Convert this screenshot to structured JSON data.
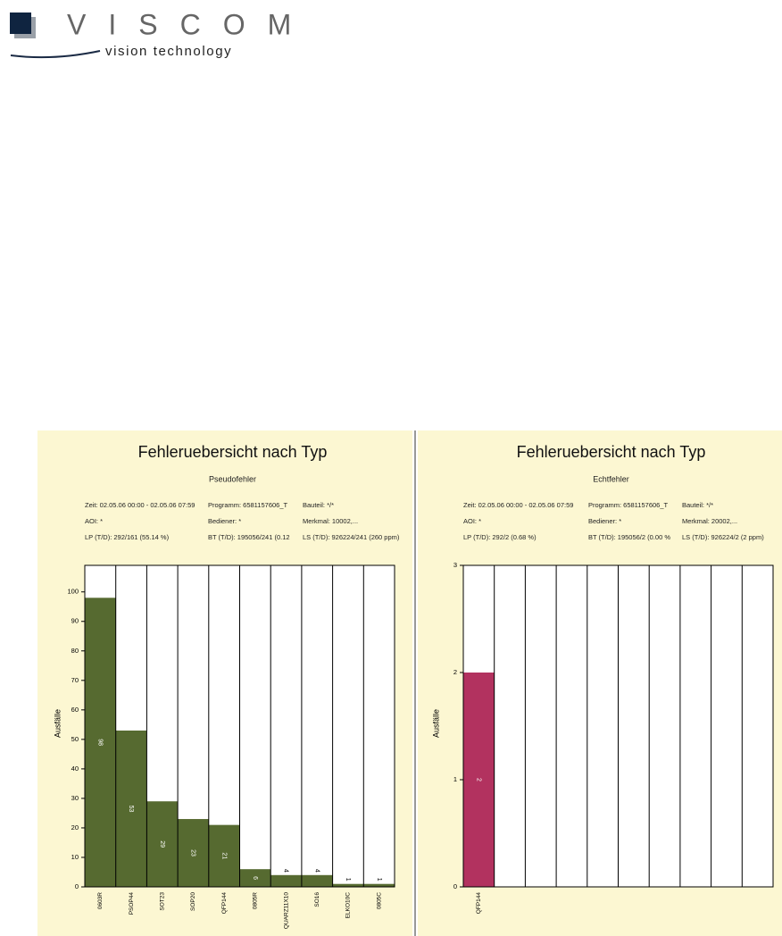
{
  "header": {
    "brand": "VISCOM",
    "tagline": "vision technology"
  },
  "chart_data": [
    {
      "type": "bar",
      "title": "Fehleruebersicht nach Typ",
      "subtitle": "Pseudofehler",
      "ylabel": "Ausfälle",
      "info": [
        [
          "Zeit: 02.05.06 00:00 - 02.05.06 07:59",
          "Programm: 6581157606_T",
          "Bauteil: */*"
        ],
        [
          "AOI: *",
          "Bediener: *",
          "Merkmal: 10002,..."
        ],
        [
          "LP (T/D): 292/161 (55.14 %)",
          "BT (T/D): 195056/241 (0.12",
          "LS (T/D): 926224/241 (260 ppm)"
        ]
      ],
      "categories": [
        "0603R",
        "PSOP44",
        "SOT23",
        "SOP20",
        "QFP144",
        "0805R",
        "QUARZ11X10",
        "SO16",
        "ELKO10C",
        "0805C"
      ],
      "values": [
        98,
        53,
        29,
        23,
        21,
        6,
        4,
        4,
        1,
        1
      ],
      "color": "#566a30",
      "ylim": [
        0,
        109
      ],
      "yticks": [
        0,
        10,
        20,
        30,
        40,
        50,
        60,
        70,
        80,
        90,
        100
      ],
      "grid": true
    },
    {
      "type": "bar",
      "title": "Fehleruebersicht nach Typ",
      "subtitle": "Echtfehler",
      "ylabel": "Ausfälle",
      "info": [
        [
          "Zeit: 02.05.06 00:00 - 02.05.06 07:59",
          "Programm: 6581157606_T",
          "Bauteil: */*"
        ],
        [
          "AOI: *",
          "Bediener: *",
          "Merkmal: 20002,..."
        ],
        [
          "LP (T/D): 292/2 (0.68 %)",
          "BT (T/D): 195056/2 (0.00 %",
          "LS (T/D): 926224/2 (2 ppm)"
        ]
      ],
      "categories": [
        "QFP144",
        null,
        null,
        null,
        null,
        null,
        null,
        null,
        null,
        null
      ],
      "values": [
        2,
        null,
        null,
        null,
        null,
        null,
        null,
        null,
        null,
        null
      ],
      "color": "#b2325f",
      "ylim": [
        0,
        3
      ],
      "yticks": [
        0,
        1,
        2,
        3
      ],
      "grid": true
    }
  ]
}
